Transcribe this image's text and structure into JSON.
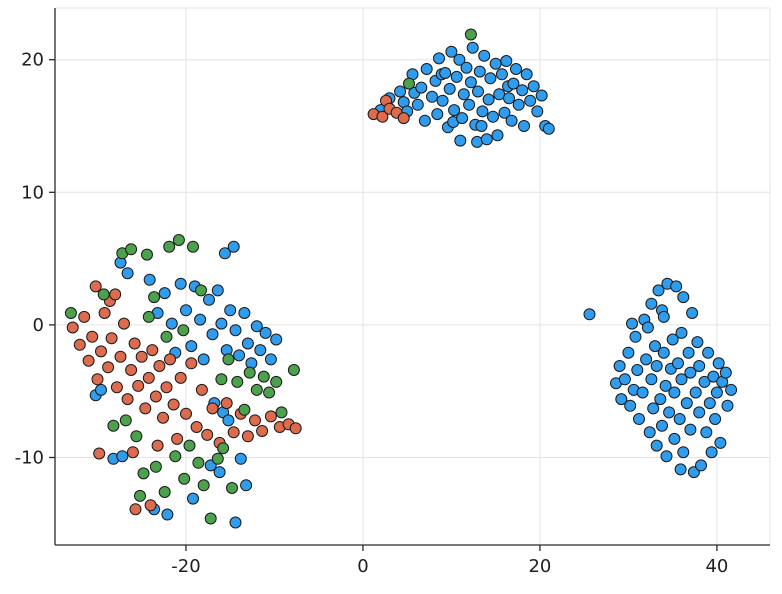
{
  "chart_data": {
    "type": "scatter",
    "title": "",
    "xlabel": "",
    "ylabel": "",
    "xlim": [
      -34.8,
      46.0
    ],
    "ylim": [
      -16.6,
      23.9
    ],
    "xticks": [
      -20,
      0,
      20,
      40
    ],
    "yticks": [
      -10,
      0,
      10,
      20
    ],
    "grid": true,
    "legend": "none",
    "marker": {
      "size": 11,
      "stroke": "#1A1A1A"
    },
    "colors": {
      "grid": "#E4E4E4",
      "axis": "#2A2A2A",
      "text": "#1F1F1F",
      "background": "#FFFFFF"
    },
    "series": [
      {
        "name": "series-1-blue",
        "color": "#2F9CED",
        "points": [
          [
            2,
            16.2
          ],
          [
            3,
            17.1
          ],
          [
            4.2,
            17.6
          ],
          [
            4.6,
            16.8
          ],
          [
            5,
            16.1
          ],
          [
            5.6,
            18.9
          ],
          [
            5.8,
            17.5
          ],
          [
            6.2,
            16.6
          ],
          [
            6.6,
            17.9
          ],
          [
            7,
            15.4
          ],
          [
            7.2,
            19.3
          ],
          [
            7.8,
            17.2
          ],
          [
            8.2,
            18.4
          ],
          [
            8.4,
            15.9
          ],
          [
            8.6,
            20.1
          ],
          [
            8.9,
            18.9
          ],
          [
            9,
            16.9
          ],
          [
            9.3,
            19
          ],
          [
            9.6,
            14.9
          ],
          [
            9.8,
            17.8
          ],
          [
            10,
            20.6
          ],
          [
            10.2,
            15.3
          ],
          [
            10.3,
            16.2
          ],
          [
            10.6,
            18.7
          ],
          [
            10.9,
            20
          ],
          [
            11,
            13.9
          ],
          [
            11.2,
            15.6
          ],
          [
            11.4,
            17.4
          ],
          [
            11.7,
            19.4
          ],
          [
            12,
            16.6
          ],
          [
            12.2,
            18.3
          ],
          [
            12.4,
            20.9
          ],
          [
            12.7,
            15.1
          ],
          [
            12.9,
            13.8
          ],
          [
            13,
            17.6
          ],
          [
            13.2,
            19.1
          ],
          [
            13.4,
            15
          ],
          [
            13.5,
            16.1
          ],
          [
            13.7,
            20.3
          ],
          [
            14,
            14
          ],
          [
            14.2,
            17
          ],
          [
            14.4,
            18.6
          ],
          [
            14.7,
            15.7
          ],
          [
            15,
            19.7
          ],
          [
            15.2,
            14.3
          ],
          [
            15.4,
            17.4
          ],
          [
            15.7,
            18.9
          ],
          [
            16,
            16
          ],
          [
            16.2,
            19.9
          ],
          [
            16.4,
            18
          ],
          [
            16.5,
            17.1
          ],
          [
            16.8,
            15.4
          ],
          [
            17,
            18.2
          ],
          [
            17.3,
            19.3
          ],
          [
            17.6,
            16.6
          ],
          [
            18,
            17.7
          ],
          [
            18.2,
            15
          ],
          [
            18.5,
            18.9
          ],
          [
            18.9,
            16.9
          ],
          [
            19.3,
            18
          ],
          [
            19.7,
            16.1
          ],
          [
            20.2,
            17.3
          ],
          [
            20.6,
            15
          ],
          [
            21,
            14.8
          ],
          [
            -30.2,
            -5.3
          ],
          [
            -29.6,
            -4.9
          ],
          [
            -28.2,
            -10.1
          ],
          [
            -27.4,
            4.7
          ],
          [
            -27.2,
            -9.9
          ],
          [
            -26.6,
            3.9
          ],
          [
            -24.1,
            3.4
          ],
          [
            -23.6,
            -13.9
          ],
          [
            -23.2,
            0.9
          ],
          [
            -22.4,
            2.4
          ],
          [
            -22.1,
            -14.3
          ],
          [
            -21.6,
            0.1
          ],
          [
            -21.2,
            -2.1
          ],
          [
            -20.6,
            3.1
          ],
          [
            -20,
            1.1
          ],
          [
            -19.4,
            -1.6
          ],
          [
            -19.2,
            -13.1
          ],
          [
            -19,
            2.9
          ],
          [
            -18.4,
            0.4
          ],
          [
            -18,
            -2.6
          ],
          [
            -17.4,
            1.9
          ],
          [
            -17.2,
            -10.6
          ],
          [
            -17,
            -0.7
          ],
          [
            -16.8,
            -5.9
          ],
          [
            -16.4,
            2.6
          ],
          [
            -16.2,
            -11.1
          ],
          [
            -16,
            0.1
          ],
          [
            -15.8,
            -6.6
          ],
          [
            -15.6,
            5.4
          ],
          [
            -15.4,
            -1.9
          ],
          [
            -15.2,
            -7.2
          ],
          [
            -15,
            1.1
          ],
          [
            -14.6,
            5.9
          ],
          [
            -14.4,
            -0.4
          ],
          [
            -14.4,
            -14.9
          ],
          [
            -14,
            -2.3
          ],
          [
            -13.8,
            -10.1
          ],
          [
            -13.4,
            0.9
          ],
          [
            -13.2,
            -12.1
          ],
          [
            -13,
            -1.4
          ],
          [
            -12.6,
            -2.9
          ],
          [
            -12,
            -0.1
          ],
          [
            -11.6,
            -1.9
          ],
          [
            -11,
            -0.6
          ],
          [
            -10.4,
            -2.6
          ],
          [
            -9.8,
            -1.1
          ],
          [
            25.6,
            0.8
          ],
          [
            28.6,
            -4.4
          ],
          [
            29,
            -3.1
          ],
          [
            29.2,
            -5.6
          ],
          [
            29.6,
            -4.1
          ],
          [
            30,
            -2.1
          ],
          [
            30.2,
            -6.1
          ],
          [
            30.4,
            0.1
          ],
          [
            30.6,
            -4.9
          ],
          [
            30.8,
            -0.9
          ],
          [
            31,
            -3.4
          ],
          [
            31.2,
            -7.1
          ],
          [
            31.6,
            -5.1
          ],
          [
            31.8,
            0.4
          ],
          [
            32,
            -2.6
          ],
          [
            32.2,
            -0.2
          ],
          [
            32.4,
            -8.1
          ],
          [
            32.6,
            -4.1
          ],
          [
            32.6,
            1.6
          ],
          [
            32.8,
            -6.3
          ],
          [
            33,
            -1.6
          ],
          [
            33.2,
            -3.1
          ],
          [
            33.2,
            -9.1
          ],
          [
            33.4,
            2.6
          ],
          [
            33.6,
            -5.6
          ],
          [
            33.8,
            -7.6
          ],
          [
            33.8,
            1.1
          ],
          [
            34,
            -2.1
          ],
          [
            34,
            0.6
          ],
          [
            34.2,
            -4.6
          ],
          [
            34.3,
            -9.9
          ],
          [
            34.4,
            3.1
          ],
          [
            34.6,
            -6.6
          ],
          [
            34.8,
            -3.3
          ],
          [
            35,
            -1.1
          ],
          [
            35.2,
            -5.1
          ],
          [
            35.2,
            -8.6
          ],
          [
            35.4,
            2.9
          ],
          [
            35.6,
            -2.9
          ],
          [
            35.8,
            -7.1
          ],
          [
            35.9,
            -10.9
          ],
          [
            36,
            -4.1
          ],
          [
            36,
            -0.6
          ],
          [
            36.2,
            -9.6
          ],
          [
            36.2,
            2.1
          ],
          [
            36.6,
            -5.9
          ],
          [
            36.8,
            -2.1
          ],
          [
            37,
            -3.6
          ],
          [
            37,
            -7.9
          ],
          [
            37.2,
            0.9
          ],
          [
            37.4,
            -11.1
          ],
          [
            37.6,
            -5.1
          ],
          [
            37.8,
            -1.3
          ],
          [
            38,
            -3.1
          ],
          [
            38,
            -6.6
          ],
          [
            38.2,
            -10.6
          ],
          [
            38.6,
            -4.3
          ],
          [
            38.8,
            -8.1
          ],
          [
            39,
            -2.1
          ],
          [
            39.2,
            -5.9
          ],
          [
            39.4,
            -9.6
          ],
          [
            39.6,
            -3.9
          ],
          [
            39.8,
            -7.1
          ],
          [
            40,
            -5.1
          ],
          [
            40.2,
            -2.9
          ],
          [
            40.4,
            -8.9
          ],
          [
            40.6,
            -4.3
          ],
          [
            41,
            -3.6
          ],
          [
            41.2,
            -6.1
          ],
          [
            41.6,
            -4.9
          ]
        ]
      },
      {
        "name": "series-2-orange",
        "color": "#DD6B4D",
        "points": [
          [
            1.2,
            15.9
          ],
          [
            2.2,
            15.7
          ],
          [
            2.6,
            16.9
          ],
          [
            3,
            16.3
          ],
          [
            3.8,
            16
          ],
          [
            4.6,
            15.6
          ],
          [
            -32.8,
            -0.2
          ],
          [
            -32,
            -1.5
          ],
          [
            -31.5,
            0.6
          ],
          [
            -31,
            -2.7
          ],
          [
            -30.6,
            -0.9
          ],
          [
            -30.2,
            2.9
          ],
          [
            -30,
            -4.1
          ],
          [
            -29.8,
            -9.7
          ],
          [
            -29.6,
            -2
          ],
          [
            -29.2,
            0.9
          ],
          [
            -28.8,
            -3.2
          ],
          [
            -28.6,
            1.8
          ],
          [
            -28.4,
            -1
          ],
          [
            -28,
            2.3
          ],
          [
            -27.8,
            -4.7
          ],
          [
            -27.4,
            -2.4
          ],
          [
            -27,
            0.1
          ],
          [
            -26.6,
            -5.6
          ],
          [
            -26.2,
            -3.4
          ],
          [
            -26,
            -9.6
          ],
          [
            -25.8,
            -1.4
          ],
          [
            -25.7,
            -13.9
          ],
          [
            -25.4,
            -4.6
          ],
          [
            -25,
            -2.4
          ],
          [
            -24.6,
            -6.3
          ],
          [
            -24.2,
            -4
          ],
          [
            -24,
            -13.6
          ],
          [
            -23.8,
            -1.9
          ],
          [
            -23.4,
            -5.4
          ],
          [
            -23.2,
            -9.1
          ],
          [
            -23,
            -3.1
          ],
          [
            -22.6,
            -7
          ],
          [
            -22.2,
            -4.7
          ],
          [
            -21.8,
            -2.6
          ],
          [
            -21.4,
            -6
          ],
          [
            -21,
            -8.6
          ],
          [
            -20.6,
            -4
          ],
          [
            -20,
            -6.7
          ],
          [
            -19.4,
            -2.9
          ],
          [
            -18.8,
            -7.7
          ],
          [
            -18.2,
            -4.9
          ],
          [
            -17.6,
            -8.3
          ],
          [
            -17,
            -6.3
          ],
          [
            -16.2,
            -8.9
          ],
          [
            -15.4,
            -5.9
          ],
          [
            -14.6,
            -8.1
          ],
          [
            -13.8,
            -6.7
          ],
          [
            -13,
            -8.4
          ],
          [
            -12.2,
            -7.2
          ],
          [
            -11.4,
            -8
          ],
          [
            -10.4,
            -6.9
          ],
          [
            -9.4,
            -7.7
          ],
          [
            -8.4,
            -7.5
          ],
          [
            -7.6,
            -7.8
          ]
        ]
      },
      {
        "name": "series-3-green",
        "color": "#4CA24C",
        "points": [
          [
            5.2,
            18.2
          ],
          [
            12.2,
            21.9
          ],
          [
            -33,
            0.9
          ],
          [
            -29.3,
            2.3
          ],
          [
            -28.2,
            -7.6
          ],
          [
            -27.2,
            5.4
          ],
          [
            -26.8,
            -7.2
          ],
          [
            -26.2,
            5.7
          ],
          [
            -25.6,
            -8.4
          ],
          [
            -25.2,
            -12.9
          ],
          [
            -24.8,
            -11.2
          ],
          [
            -24.4,
            5.3
          ],
          [
            -24.2,
            0.6
          ],
          [
            -23.6,
            2.1
          ],
          [
            -23.4,
            -10.7
          ],
          [
            -22.4,
            -12.6
          ],
          [
            -22.2,
            -0.9
          ],
          [
            -21.9,
            5.9
          ],
          [
            -21.2,
            -9.9
          ],
          [
            -20.8,
            6.4
          ],
          [
            -20.3,
            -0.4
          ],
          [
            -20.2,
            -11.6
          ],
          [
            -19.6,
            -9.1
          ],
          [
            -19.2,
            5.9
          ],
          [
            -18.6,
            -10.4
          ],
          [
            -18.3,
            2.6
          ],
          [
            -18,
            -12.1
          ],
          [
            -17.2,
            -14.6
          ],
          [
            -16.4,
            -10.1
          ],
          [
            -16,
            -4.1
          ],
          [
            -15.8,
            -9.3
          ],
          [
            -15.2,
            -2.6
          ],
          [
            -14.8,
            -12.3
          ],
          [
            -14.2,
            -4.3
          ],
          [
            -13.4,
            -6.4
          ],
          [
            -12.8,
            -3.6
          ],
          [
            -12,
            -4.9
          ],
          [
            -11.2,
            -3.9
          ],
          [
            -10.6,
            -5.1
          ],
          [
            -9.8,
            -4.3
          ],
          [
            -9.2,
            -6.6
          ],
          [
            -7.8,
            -3.4
          ]
        ]
      }
    ]
  }
}
